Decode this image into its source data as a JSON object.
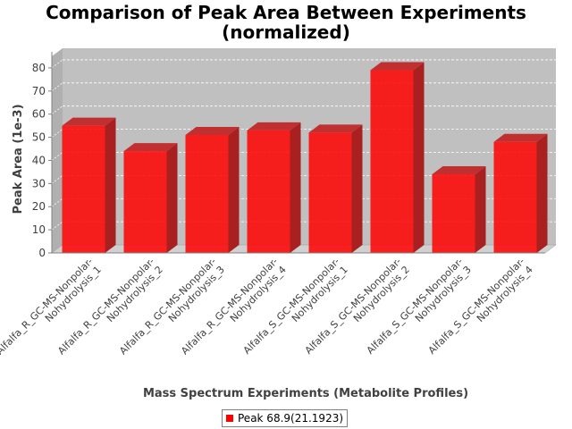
{
  "chart_data": {
    "type": "bar",
    "title_line1": "Comparison of Peak Area Between Experiments",
    "title_line2": "(normalized)",
    "xlabel": "Mass Spectrum Experiments (Metabolite Profiles)",
    "ylabel": "Peak Area (1e-3)",
    "ylim": [
      0,
      85
    ],
    "yticks": [
      "0",
      "10",
      "20",
      "30",
      "40",
      "50",
      "60",
      "70",
      "80"
    ],
    "grid": true,
    "legend_position": "bottom",
    "categories": [
      [
        "Alfalfa_R_GC-MS-Nonpolar-",
        "Nohydrolysis_1"
      ],
      [
        "Alfalfa_R_GC-MS-Nonpolar-",
        "Nohydrolysis_2"
      ],
      [
        "Alfalfa_R_GC-MS-Nonpolar-",
        "Nohydrolysis_3"
      ],
      [
        "Alfalfa_R_GC-MS-Nonpolar-",
        "Nohydrolysis_4"
      ],
      [
        "Alfalfa_S_GC-MS-Nonpolar-",
        "Nohydrolysis_1"
      ],
      [
        "Alfalfa_S_GC-MS-Nonpolar-",
        "Nohydrolysis_2"
      ],
      [
        "Alfalfa_S_GC-MS-Nonpolar-",
        "Nohydrolysis_3"
      ],
      [
        "Alfalfa_S_GC-MS-Nonpolar-",
        "Nohydrolysis_4"
      ]
    ],
    "series": [
      {
        "name": "Peak 68.9(21.1923)",
        "color": "#ff0000",
        "values": [
          55,
          44,
          51,
          53,
          52,
          79,
          34,
          48
        ]
      }
    ]
  }
}
